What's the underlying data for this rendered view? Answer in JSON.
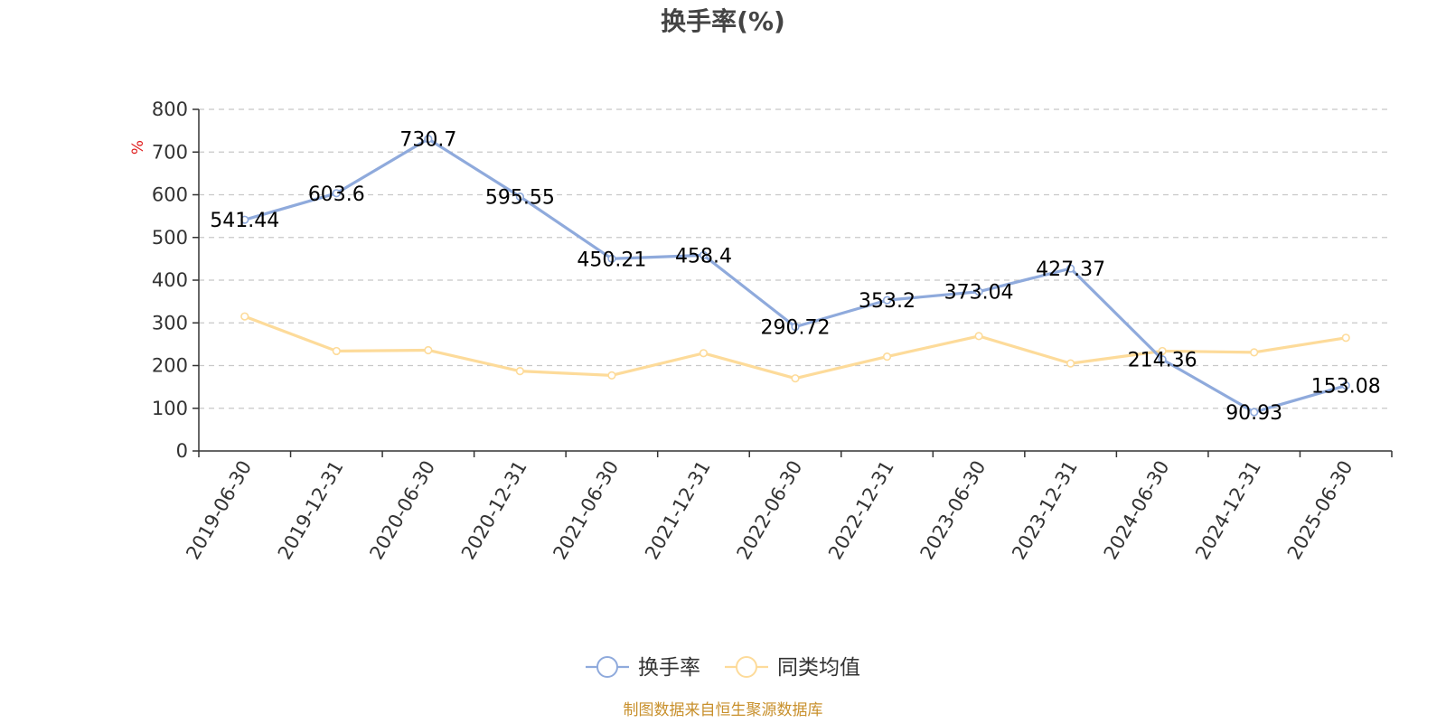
{
  "chart_data": {
    "type": "line",
    "title": "换手率(%)",
    "ylabel": "%",
    "xlabel": "",
    "ylim": [
      0,
      800
    ],
    "yticks": [
      0,
      100,
      200,
      300,
      400,
      500,
      600,
      700,
      800
    ],
    "grid": true,
    "legend_position": "bottom-center",
    "categories": [
      "2019-06-30",
      "2019-12-31",
      "2020-06-30",
      "2020-12-31",
      "2021-06-30",
      "2021-12-31",
      "2022-06-30",
      "2022-12-31",
      "2023-06-30",
      "2023-12-31",
      "2024-06-30",
      "2024-12-31",
      "2025-06-30"
    ],
    "series": [
      {
        "name": "换手率",
        "color": "#8faadc",
        "values": [
          541.44,
          603.6,
          730.7,
          595.55,
          450.21,
          458.4,
          290.72,
          353.2,
          373.04,
          427.37,
          214.36,
          90.93,
          153.08
        ],
        "labels": [
          "541.44",
          "603.6",
          "730.7",
          "595.55",
          "450.21",
          "458.4",
          "290.72",
          "353.2",
          "373.04",
          "427.37",
          "214.36",
          "90.93",
          "153.08"
        ]
      },
      {
        "name": "同类均值",
        "color": "#fddb9a",
        "values": [
          315,
          234,
          236,
          187,
          177,
          229,
          170,
          221,
          269,
          205,
          234,
          231,
          265
        ]
      }
    ]
  },
  "unit_color": "#e02020",
  "source": {
    "text": "制图数据来自恒生聚源数据库",
    "color": "#c8902c"
  }
}
